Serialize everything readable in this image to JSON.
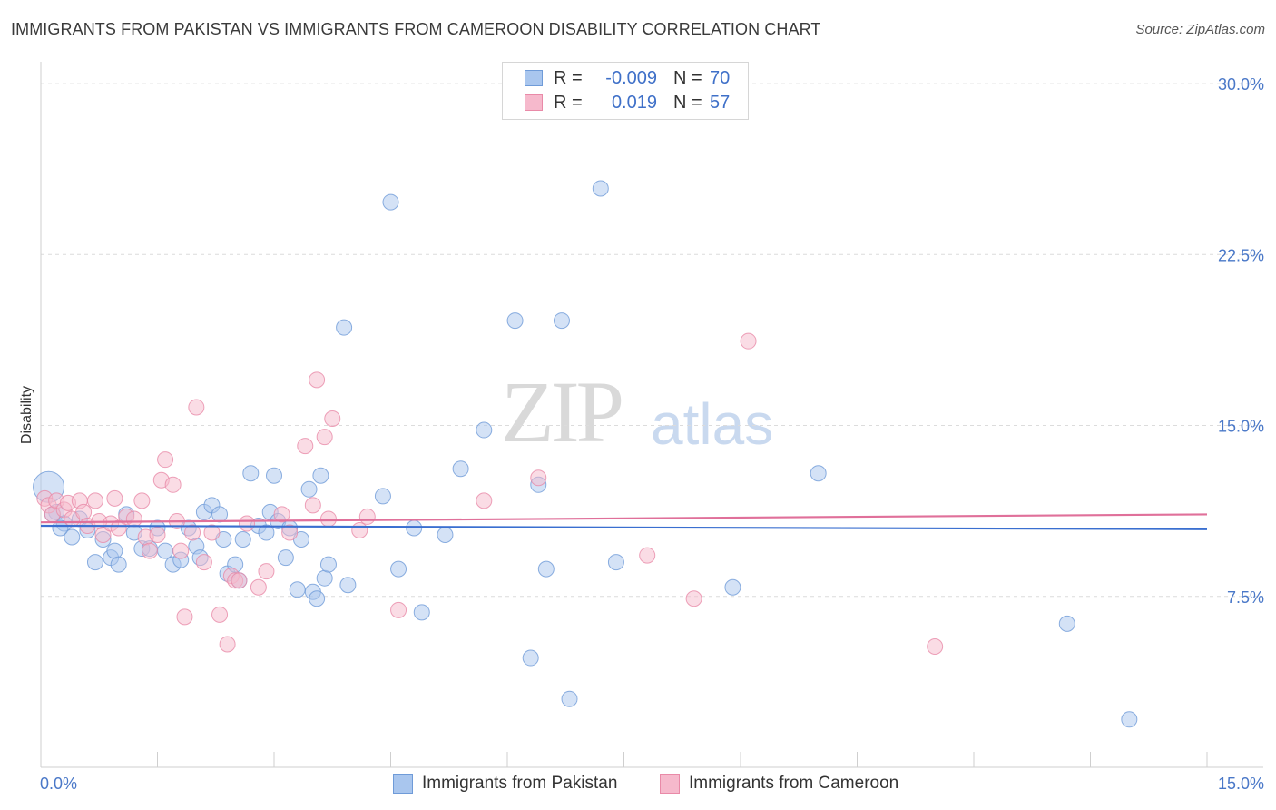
{
  "title": "IMMIGRANTS FROM PAKISTAN VS IMMIGRANTS FROM CAMEROON DISABILITY CORRELATION CHART",
  "source": "Source: ZipAtlas.com",
  "watermark": {
    "zip": "ZIP",
    "atlas": "atlas"
  },
  "legend": {
    "rows": [
      {
        "r_label": "R =",
        "r_value": "-0.009",
        "n_label": "N =",
        "n_value": "70",
        "color": "#a9c6ee"
      },
      {
        "r_label": "R =",
        "r_value": "0.019",
        "n_label": "N =",
        "n_value": "57",
        "color": "#f6b9cc"
      }
    ]
  },
  "bottom_legend": [
    "Immigrants from Pakistan",
    "Immigrants from Cameroon"
  ],
  "colors": {
    "pakistan_fill": "#a9c6ee",
    "pakistan_stroke": "#6f9bd8",
    "pakistan_line": "#3a6fd0",
    "cameroon_fill": "#f6b9cc",
    "cameroon_stroke": "#e98aa8",
    "cameroon_line": "#e0709a"
  },
  "chart_data": {
    "type": "scatter",
    "title": "IMMIGRANTS FROM PAKISTAN VS IMMIGRANTS FROM CAMEROON DISABILITY CORRELATION CHART",
    "xlabel": "",
    "ylabel": "Disability",
    "xlim": [
      0,
      15
    ],
    "ylim": [
      0,
      30.8
    ],
    "x_tick_labels": [
      "0.0%",
      "15.0%"
    ],
    "y_tick_labels": [
      "7.5%",
      "15.0%",
      "22.5%",
      "30.0%"
    ],
    "y_ticks": [
      7.5,
      15,
      22.5,
      30
    ],
    "grid": true,
    "legend_placement": "top-center",
    "series": [
      {
        "name": "Immigrants from Pakistan",
        "trend": [
          [
            0,
            10.6
          ],
          [
            15,
            10.45
          ]
        ],
        "points": [
          [
            0.1,
            12.3
          ],
          [
            0.2,
            11.2
          ],
          [
            0.3,
            10.7
          ],
          [
            0.4,
            10.1
          ],
          [
            0.5,
            10.9
          ],
          [
            0.6,
            10.4
          ],
          [
            0.7,
            9.0
          ],
          [
            0.8,
            10.0
          ],
          [
            0.9,
            9.2
          ],
          [
            0.95,
            9.5
          ],
          [
            1.0,
            8.9
          ],
          [
            1.1,
            11.1
          ],
          [
            1.2,
            10.3
          ],
          [
            1.3,
            9.6
          ],
          [
            1.4,
            9.6
          ],
          [
            1.5,
            10.5
          ],
          [
            1.6,
            9.5
          ],
          [
            1.7,
            8.9
          ],
          [
            1.8,
            9.1
          ],
          [
            1.9,
            10.5
          ],
          [
            2.0,
            9.7
          ],
          [
            2.05,
            9.2
          ],
          [
            2.1,
            11.2
          ],
          [
            2.2,
            11.5
          ],
          [
            2.3,
            11.1
          ],
          [
            2.35,
            10.0
          ],
          [
            2.4,
            8.5
          ],
          [
            2.5,
            8.9
          ],
          [
            2.55,
            8.2
          ],
          [
            2.6,
            10.0
          ],
          [
            2.7,
            12.9
          ],
          [
            2.8,
            10.6
          ],
          [
            2.9,
            10.3
          ],
          [
            2.95,
            11.2
          ],
          [
            3.0,
            12.8
          ],
          [
            3.05,
            10.8
          ],
          [
            3.15,
            9.2
          ],
          [
            3.2,
            10.5
          ],
          [
            3.3,
            7.8
          ],
          [
            3.35,
            10.0
          ],
          [
            3.45,
            12.2
          ],
          [
            3.5,
            7.7
          ],
          [
            3.55,
            7.4
          ],
          [
            3.6,
            12.8
          ],
          [
            3.65,
            8.3
          ],
          [
            3.7,
            8.9
          ],
          [
            3.9,
            19.3
          ],
          [
            3.95,
            8.0
          ],
          [
            4.4,
            11.9
          ],
          [
            4.5,
            24.8
          ],
          [
            4.6,
            8.7
          ],
          [
            4.8,
            10.5
          ],
          [
            4.9,
            6.8
          ],
          [
            5.2,
            10.2
          ],
          [
            5.4,
            13.1
          ],
          [
            5.7,
            14.8
          ],
          [
            6.1,
            19.6
          ],
          [
            6.3,
            4.8
          ],
          [
            6.4,
            12.4
          ],
          [
            6.5,
            8.7
          ],
          [
            6.7,
            19.6
          ],
          [
            6.8,
            3.0
          ],
          [
            7.2,
            25.4
          ],
          [
            7.4,
            9.0
          ],
          [
            8.9,
            7.9
          ],
          [
            10.0,
            12.9
          ],
          [
            13.2,
            6.3
          ],
          [
            14.0,
            2.1
          ],
          [
            0.15,
            11.1
          ],
          [
            0.25,
            10.5
          ]
        ]
      },
      {
        "name": "Immigrants from Cameroon",
        "trend": [
          [
            0,
            10.75
          ],
          [
            15,
            11.1
          ]
        ],
        "points": [
          [
            0.05,
            11.8
          ],
          [
            0.1,
            11.5
          ],
          [
            0.15,
            11.1
          ],
          [
            0.2,
            11.7
          ],
          [
            0.3,
            11.3
          ],
          [
            0.35,
            11.6
          ],
          [
            0.4,
            10.9
          ],
          [
            0.5,
            11.7
          ],
          [
            0.55,
            11.2
          ],
          [
            0.6,
            10.6
          ],
          [
            0.7,
            11.7
          ],
          [
            0.75,
            10.8
          ],
          [
            0.8,
            10.2
          ],
          [
            0.9,
            10.7
          ],
          [
            0.95,
            11.8
          ],
          [
            1.0,
            10.5
          ],
          [
            1.1,
            11.0
          ],
          [
            1.2,
            10.9
          ],
          [
            1.3,
            11.7
          ],
          [
            1.35,
            10.1
          ],
          [
            1.4,
            9.5
          ],
          [
            1.5,
            10.2
          ],
          [
            1.55,
            12.6
          ],
          [
            1.6,
            13.5
          ],
          [
            1.7,
            12.4
          ],
          [
            1.75,
            10.8
          ],
          [
            1.8,
            9.5
          ],
          [
            1.85,
            6.6
          ],
          [
            1.95,
            10.3
          ],
          [
            2.0,
            15.8
          ],
          [
            2.1,
            9.0
          ],
          [
            2.2,
            10.3
          ],
          [
            2.3,
            6.7
          ],
          [
            2.4,
            5.4
          ],
          [
            2.45,
            8.4
          ],
          [
            2.5,
            8.2
          ],
          [
            2.55,
            8.2
          ],
          [
            2.65,
            10.7
          ],
          [
            2.8,
            7.9
          ],
          [
            2.9,
            8.6
          ],
          [
            3.1,
            11.1
          ],
          [
            3.2,
            10.3
          ],
          [
            3.4,
            14.1
          ],
          [
            3.5,
            11.5
          ],
          [
            3.55,
            17.0
          ],
          [
            3.65,
            14.5
          ],
          [
            3.7,
            10.9
          ],
          [
            3.75,
            15.3
          ],
          [
            4.1,
            10.4
          ],
          [
            4.2,
            11.0
          ],
          [
            4.6,
            6.9
          ],
          [
            5.7,
            11.7
          ],
          [
            6.4,
            12.7
          ],
          [
            7.8,
            9.3
          ],
          [
            8.4,
            7.4
          ],
          [
            9.1,
            18.7
          ],
          [
            11.5,
            5.3
          ]
        ]
      }
    ]
  }
}
